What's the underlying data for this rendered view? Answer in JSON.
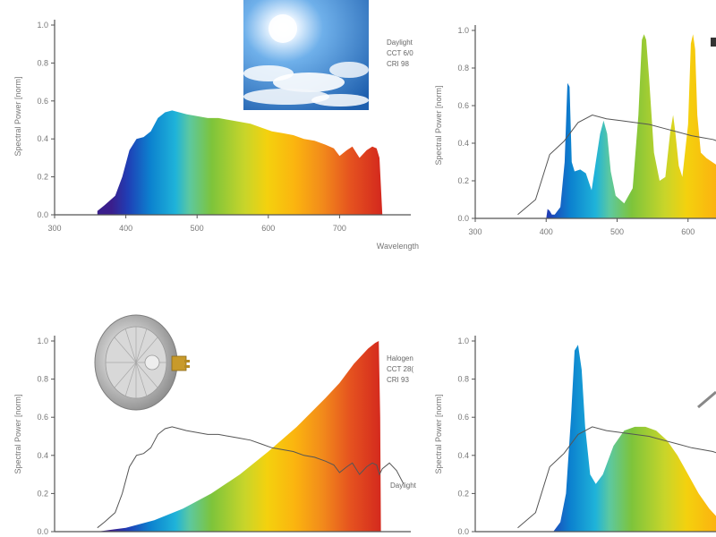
{
  "chart_data": [
    {
      "type": "area",
      "xlabel": "Wavelength",
      "ylabel": "Spectral Power [norm]",
      "xlim": [
        300,
        800
      ],
      "ylim": [
        0,
        1.0
      ],
      "xticks": [
        "300",
        "400",
        "500",
        "600",
        "700"
      ],
      "yticks": [
        "0.0",
        "0.2",
        "0.4",
        "0.6",
        "0.8",
        "1.0"
      ],
      "annotation": [
        "Daylight",
        "CCT 6/0",
        "CRI 98"
      ],
      "photo": "sky-photo",
      "series": [
        {
          "style": "spectrum-fill",
          "x": [
            360,
            370,
            385,
            395,
            405,
            415,
            425,
            435,
            445,
            455,
            465,
            475,
            485,
            500,
            515,
            530,
            545,
            560,
            575,
            590,
            605,
            620,
            635,
            650,
            665,
            680,
            692,
            700,
            710,
            718,
            728,
            738,
            746,
            752,
            756,
            760
          ],
          "y": [
            0.02,
            0.05,
            0.1,
            0.2,
            0.34,
            0.4,
            0.41,
            0.44,
            0.51,
            0.54,
            0.55,
            0.54,
            0.53,
            0.52,
            0.51,
            0.51,
            0.5,
            0.49,
            0.48,
            0.46,
            0.44,
            0.43,
            0.42,
            0.4,
            0.39,
            0.37,
            0.35,
            0.31,
            0.34,
            0.36,
            0.3,
            0.34,
            0.36,
            0.35,
            0.3,
            0.0
          ]
        }
      ]
    },
    {
      "type": "area",
      "xlabel": "",
      "ylabel": "Spectral Power [norm]",
      "xlim": [
        300,
        700
      ],
      "ylim": [
        0,
        1.0
      ],
      "xticks": [
        "300",
        "400",
        "500",
        "600"
      ],
      "yticks": [
        "0.0",
        "0.2",
        "0.4",
        "0.6",
        "0.8",
        "1.0"
      ],
      "series": [
        {
          "style": "spectrum-fill",
          "x": [
            400,
            402,
            405,
            408,
            412,
            420,
            426,
            430,
            433,
            436,
            440,
            448,
            456,
            464,
            470,
            476,
            481,
            486,
            491,
            498,
            510,
            522,
            530,
            535,
            538,
            541,
            545,
            552,
            560,
            568,
            575,
            579,
            582,
            587,
            592,
            600,
            604,
            607,
            610,
            613,
            618,
            626,
            634,
            642,
            650
          ],
          "y": [
            0.0,
            0.05,
            0.04,
            0.02,
            0.02,
            0.06,
            0.3,
            0.72,
            0.7,
            0.3,
            0.25,
            0.26,
            0.24,
            0.15,
            0.3,
            0.45,
            0.52,
            0.45,
            0.25,
            0.12,
            0.08,
            0.16,
            0.55,
            0.95,
            0.98,
            0.95,
            0.75,
            0.35,
            0.2,
            0.22,
            0.46,
            0.55,
            0.46,
            0.28,
            0.22,
            0.5,
            0.93,
            0.98,
            0.9,
            0.55,
            0.35,
            0.32,
            0.3,
            0.28,
            0.26
          ]
        },
        {
          "style": "reference-line",
          "x": [
            360,
            385,
            405,
            425,
            445,
            465,
            485,
            505,
            525,
            545,
            565,
            585,
            605,
            620,
            635,
            650
          ],
          "y": [
            0.02,
            0.1,
            0.34,
            0.41,
            0.51,
            0.55,
            0.53,
            0.52,
            0.51,
            0.5,
            0.48,
            0.46,
            0.44,
            0.43,
            0.42,
            0.4
          ]
        }
      ]
    },
    {
      "type": "area",
      "xlabel": "",
      "ylabel": "Spectral Power [norm]",
      "xlim": [
        300,
        800
      ],
      "ylim": [
        0,
        1.0
      ],
      "xticks": [],
      "yticks": [
        "0.0",
        "0.2",
        "0.4",
        "0.6",
        "0.8",
        "1.0"
      ],
      "annotation": [
        "Halogen",
        "CCT 28(",
        "CRI 93"
      ],
      "series_label": "Daylight",
      "photo": "halogen-lamp-photo",
      "series": [
        {
          "style": "spectrum-fill",
          "x": [
            360,
            400,
            440,
            480,
            520,
            560,
            600,
            640,
            680,
            700,
            720,
            740,
            750,
            755,
            757,
            758
          ],
          "y": [
            0.0,
            0.02,
            0.06,
            0.12,
            0.2,
            0.3,
            0.42,
            0.55,
            0.7,
            0.78,
            0.88,
            0.96,
            0.99,
            1.0,
            0.6,
            0.0
          ]
        },
        {
          "style": "reference-line",
          "x": [
            360,
            370,
            385,
            395,
            405,
            415,
            425,
            435,
            445,
            455,
            465,
            475,
            485,
            500,
            515,
            530,
            545,
            560,
            575,
            590,
            605,
            620,
            635,
            650,
            665,
            680,
            692,
            700,
            710,
            718,
            728,
            738,
            746,
            752,
            756,
            760,
            770,
            780,
            790
          ],
          "y": [
            0.02,
            0.05,
            0.1,
            0.2,
            0.34,
            0.4,
            0.41,
            0.44,
            0.51,
            0.54,
            0.55,
            0.54,
            0.53,
            0.52,
            0.51,
            0.51,
            0.5,
            0.49,
            0.48,
            0.46,
            0.44,
            0.43,
            0.42,
            0.4,
            0.39,
            0.37,
            0.35,
            0.31,
            0.34,
            0.36,
            0.3,
            0.34,
            0.36,
            0.35,
            0.3,
            0.33,
            0.36,
            0.32,
            0.25
          ]
        }
      ]
    },
    {
      "type": "area",
      "xlabel": "",
      "ylabel": "Spectral Power [norm]",
      "xlim": [
        300,
        700
      ],
      "ylim": [
        0,
        1.0
      ],
      "xticks": [],
      "yticks": [
        "0.0",
        "0.2",
        "0.4",
        "0.6",
        "0.8",
        "1.0"
      ],
      "series": [
        {
          "style": "spectrum-fill",
          "x": [
            410,
            420,
            428,
            435,
            440,
            445,
            450,
            455,
            462,
            470,
            480,
            495,
            510,
            525,
            540,
            555,
            570,
            585,
            600,
            615,
            630,
            640
          ],
          "y": [
            0.0,
            0.05,
            0.2,
            0.6,
            0.95,
            0.98,
            0.85,
            0.55,
            0.3,
            0.25,
            0.3,
            0.45,
            0.53,
            0.55,
            0.55,
            0.53,
            0.48,
            0.4,
            0.3,
            0.2,
            0.12,
            0.08
          ]
        },
        {
          "style": "reference-line",
          "x": [
            360,
            385,
            405,
            425,
            445,
            465,
            485,
            505,
            525,
            545,
            565,
            585,
            605,
            620,
            635,
            650
          ],
          "y": [
            0.02,
            0.1,
            0.34,
            0.41,
            0.51,
            0.55,
            0.53,
            0.52,
            0.51,
            0.5,
            0.48,
            0.46,
            0.44,
            0.43,
            0.42,
            0.4
          ]
        }
      ]
    }
  ]
}
